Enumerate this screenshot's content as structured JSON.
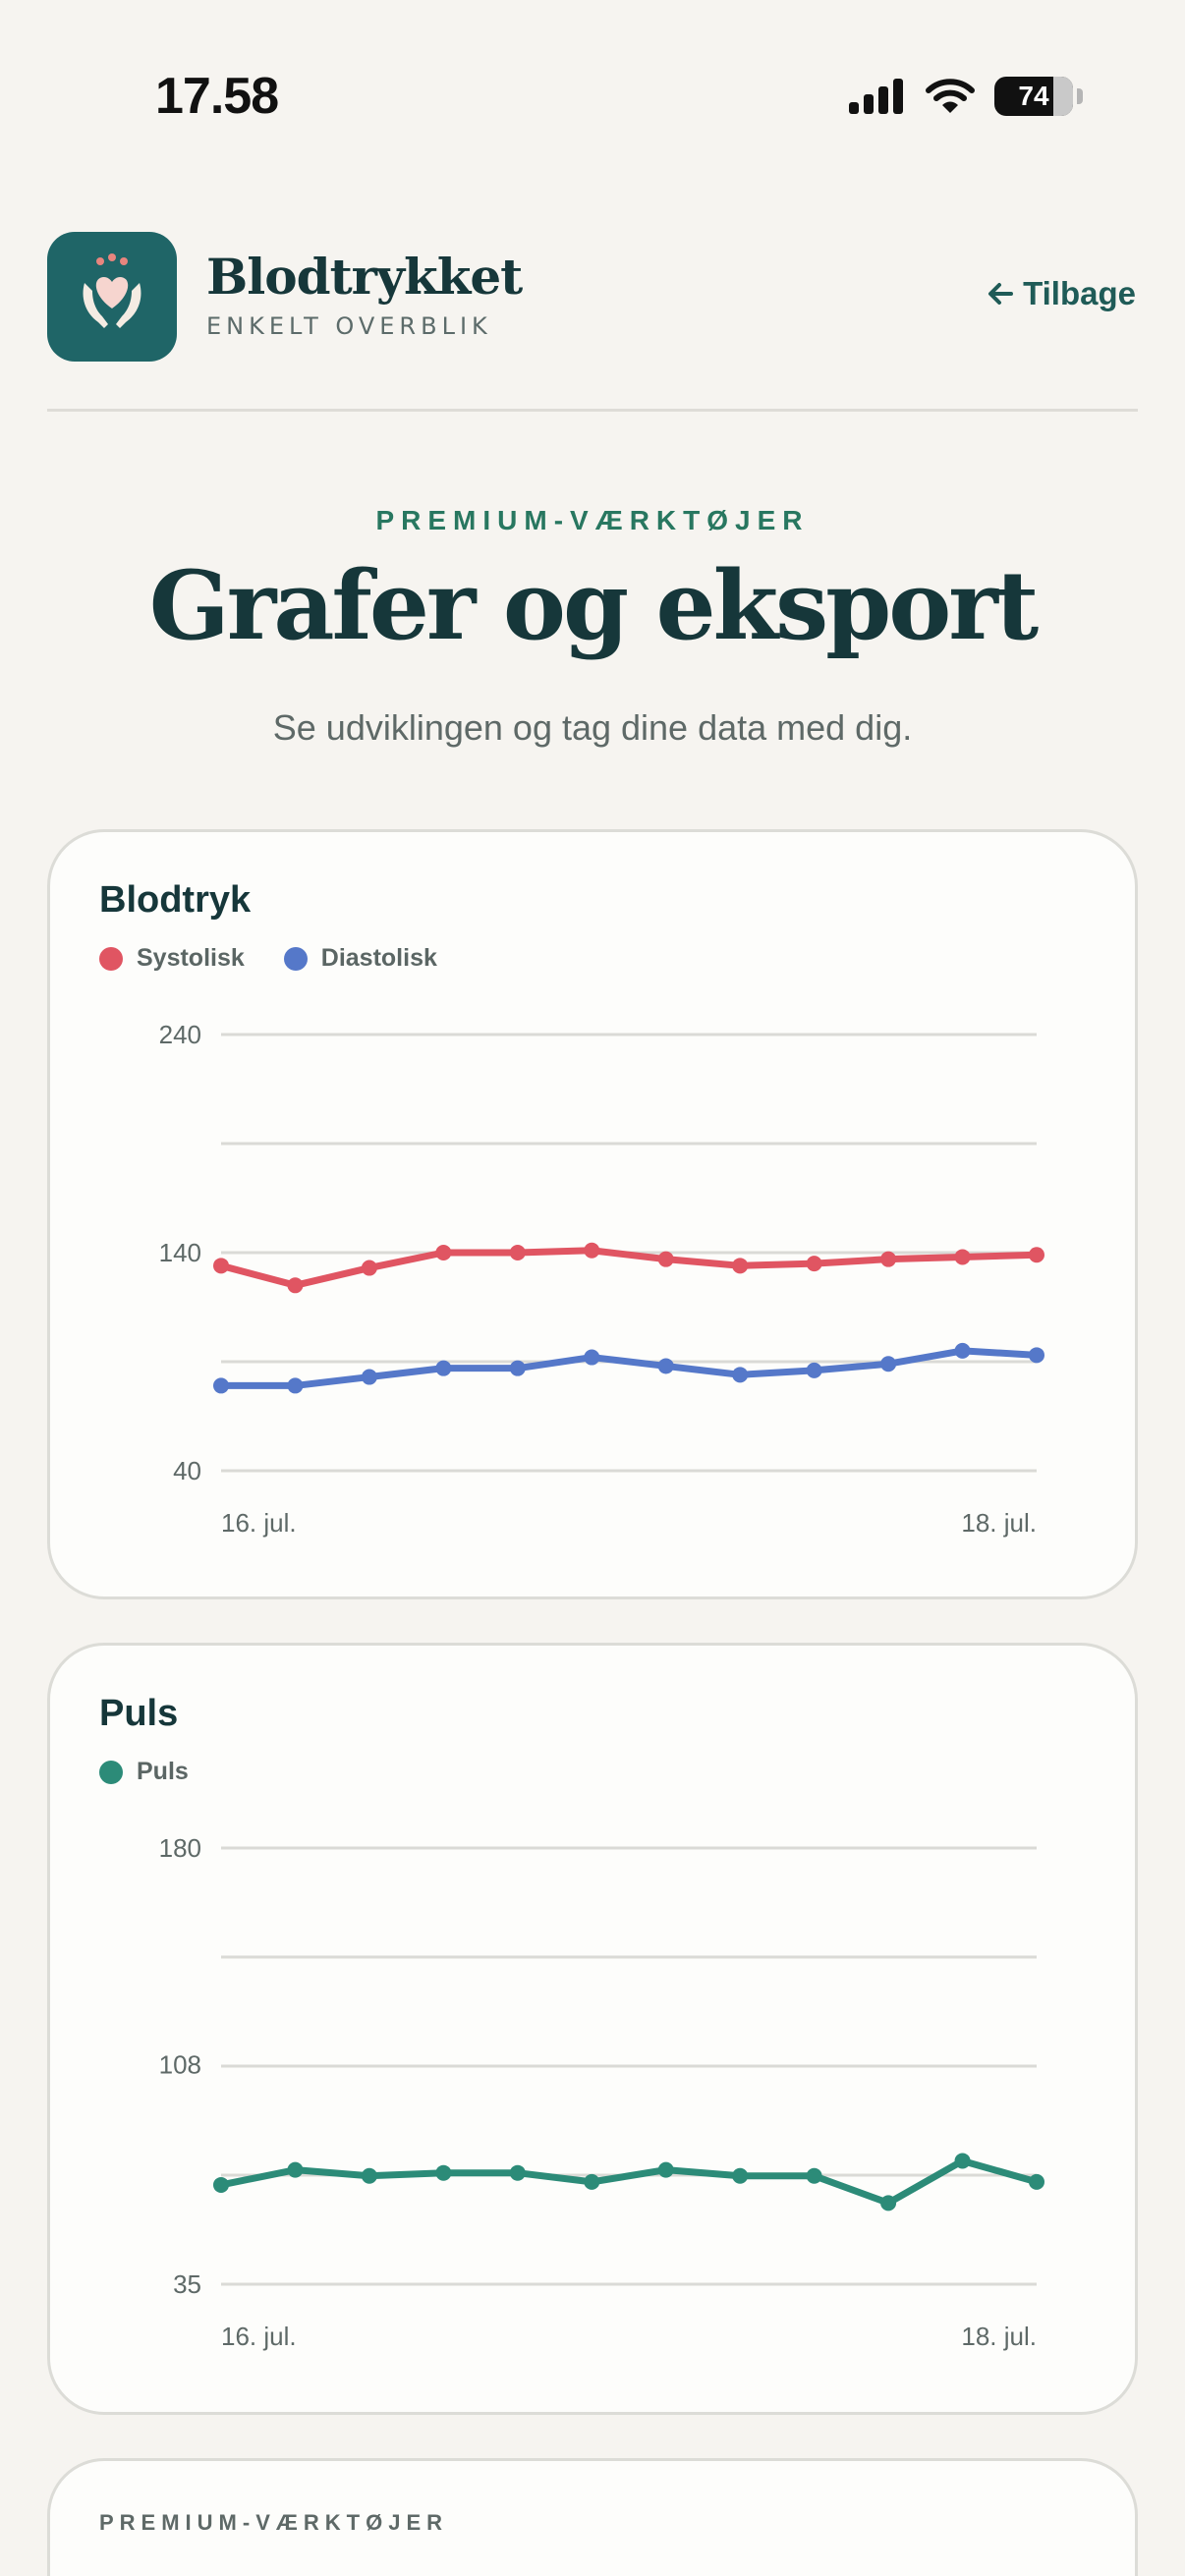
{
  "status_bar": {
    "time": "17.58",
    "battery": "74"
  },
  "header": {
    "title": "Blodtrykket",
    "subtitle": "ENKELT OVERBLIK",
    "back_label": "Tilbage"
  },
  "hero": {
    "eyebrow": "PREMIUM-VÆRKTØJER",
    "title": "Grafer og eksport",
    "subtitle": "Se udviklingen og tag dine data med dig."
  },
  "colors": {
    "accent": "#1f6567",
    "systolic": "#e05562",
    "diastolic": "#5578c9",
    "pulse": "#2c8b78"
  },
  "bp_card": {
    "title": "Blodtryk"
  },
  "pulse_card": {
    "title": "Puls"
  },
  "tools_card": {
    "eyebrow": "PREMIUM-VÆRKTØJER"
  },
  "chart_data": [
    {
      "type": "line",
      "title": "Blodtryk",
      "x": [
        "16. jul.",
        "",
        "",
        "",
        "",
        "",
        "",
        "",
        "",
        "",
        "",
        "18. jul."
      ],
      "x_tick_labels": [
        "16. jul.",
        "18. jul."
      ],
      "y_ticks": [
        240,
        140,
        40
      ],
      "ylim": [
        40,
        240
      ],
      "grid": true,
      "legend": "top-left",
      "series": [
        {
          "name": "Systolisk",
          "color": "#e05562",
          "values": [
            134,
            125,
            133,
            140,
            140,
            141,
            137,
            134,
            135,
            137,
            138,
            139
          ]
        },
        {
          "name": "Diastolisk",
          "color": "#5578c9",
          "values": [
            79,
            79,
            83,
            87,
            87,
            92,
            88,
            84,
            86,
            89,
            95,
            93
          ]
        }
      ]
    },
    {
      "type": "line",
      "title": "Puls",
      "x": [
        "16. jul.",
        "",
        "",
        "",
        "",
        "",
        "",
        "",
        "",
        "",
        "",
        "18. jul."
      ],
      "x_tick_labels": [
        "16. jul.",
        "18. jul."
      ],
      "y_ticks": [
        180,
        108,
        35
      ],
      "ylim": [
        35,
        180
      ],
      "grid": true,
      "legend": "top-left",
      "series": [
        {
          "name": "Puls",
          "color": "#2c8b78",
          "values": [
            68,
            73,
            71,
            72,
            72,
            69,
            73,
            71,
            71,
            62,
            76,
            69
          ]
        }
      ]
    }
  ]
}
